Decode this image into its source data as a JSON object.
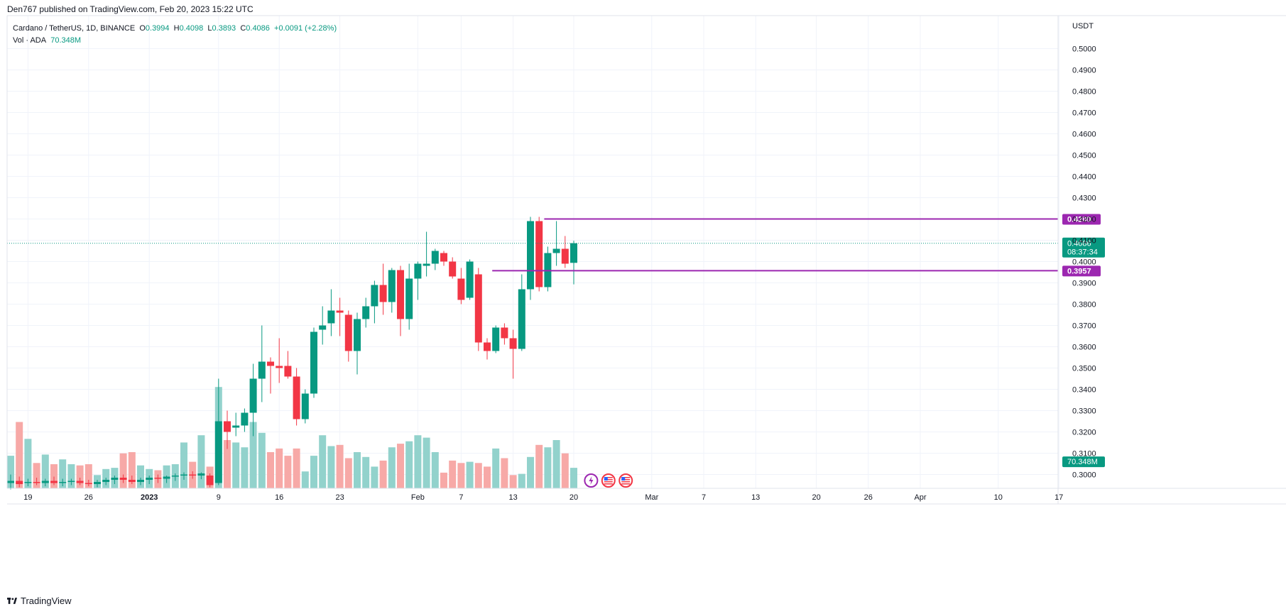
{
  "header": {
    "published": "Den767 published on TradingView.com, Feb 20, 2023 15:22 UTC"
  },
  "legend": {
    "symbol": "Cardano / TetherUS, 1D, BINANCE",
    "o_label": "O",
    "o": "0.3994",
    "h_label": "H",
    "h": "0.4098",
    "l_label": "L",
    "l": "0.3893",
    "c_label": "C",
    "c": "0.4086",
    "change": "+0.0091 (+2.28%)",
    "vol_label": "Vol · ADA",
    "vol": "70.348M"
  },
  "footer": {
    "brand": "TradingView"
  },
  "colors": {
    "up": "#089981",
    "down": "#f23645",
    "up_vol": "#92d2cc",
    "down_vol": "#f7a9a7",
    "level": "#9c27b0",
    "grid": "#f0f3fa",
    "text": "#131722"
  },
  "icons": [
    "flash-icon",
    "us-flag-icon",
    "us-flag-icon"
  ],
  "chart_data": {
    "type": "candlestick",
    "currency": "USDT",
    "y_ticks": [
      "0.3000",
      "0.3100",
      "0.3200",
      "0.3300",
      "0.3400",
      "0.3500",
      "0.3600",
      "0.3700",
      "0.3800",
      "0.3900",
      "0.4000",
      "0.4100",
      "0.4200",
      "0.4300",
      "0.4400",
      "0.4500",
      "0.4600",
      "0.4700",
      "0.4800",
      "0.4900",
      "0.5000"
    ],
    "ylim": [
      0.2935,
      0.5155
    ],
    "x_ticks": [
      {
        "label": "19",
        "i": 2
      },
      {
        "label": "26",
        "i": 9
      },
      {
        "label": "2023",
        "i": 16
      },
      {
        "label": "9",
        "i": 24
      },
      {
        "label": "16",
        "i": 31
      },
      {
        "label": "23",
        "i": 38
      },
      {
        "label": "Feb",
        "i": 47
      },
      {
        "label": "7",
        "i": 52
      },
      {
        "label": "13",
        "i": 58
      },
      {
        "label": "20",
        "i": 65
      },
      {
        "label": "Mar",
        "i": 74
      },
      {
        "label": "7",
        "i": 80
      },
      {
        "label": "13",
        "i": 86
      },
      {
        "label": "20",
        "i": 93
      },
      {
        "label": "26",
        "i": 99
      },
      {
        "label": "Apr",
        "i": 105
      },
      {
        "label": "10",
        "i": 114
      },
      {
        "label": "17",
        "i": 121
      }
    ],
    "candles": [
      {
        "date": "2022-12-17",
        "o": 0.296,
        "h": 0.3,
        "l": 0.293,
        "c": 0.297,
        "v": 0.27
      },
      {
        "date": "2022-12-18",
        "o": 0.297,
        "h": 0.299,
        "l": 0.294,
        "c": 0.2955,
        "v": 0.55
      },
      {
        "date": "2022-12-19",
        "o": 0.296,
        "h": 0.298,
        "l": 0.2945,
        "c": 0.2965,
        "v": 0.41
      },
      {
        "date": "2022-12-20",
        "o": 0.2965,
        "h": 0.2985,
        "l": 0.295,
        "c": 0.296,
        "v": 0.21
      },
      {
        "date": "2022-12-21",
        "o": 0.296,
        "h": 0.298,
        "l": 0.2945,
        "c": 0.297,
        "v": 0.28
      },
      {
        "date": "2022-12-22",
        "o": 0.297,
        "h": 0.299,
        "l": 0.295,
        "c": 0.296,
        "v": 0.2
      },
      {
        "date": "2022-12-23",
        "o": 0.296,
        "h": 0.298,
        "l": 0.2945,
        "c": 0.2965,
        "v": 0.24
      },
      {
        "date": "2022-12-24",
        "o": 0.2965,
        "h": 0.298,
        "l": 0.295,
        "c": 0.297,
        "v": 0.2
      },
      {
        "date": "2022-12-25",
        "o": 0.297,
        "h": 0.2985,
        "l": 0.295,
        "c": 0.296,
        "v": 0.19
      },
      {
        "date": "2022-12-26",
        "o": 0.296,
        "h": 0.2975,
        "l": 0.2945,
        "c": 0.2955,
        "v": 0.2
      },
      {
        "date": "2022-12-27",
        "o": 0.2955,
        "h": 0.2975,
        "l": 0.294,
        "c": 0.2965,
        "v": 0.11
      },
      {
        "date": "2022-12-28",
        "o": 0.2965,
        "h": 0.2985,
        "l": 0.295,
        "c": 0.2975,
        "v": 0.16
      },
      {
        "date": "2022-12-29",
        "o": 0.2975,
        "h": 0.2995,
        "l": 0.2955,
        "c": 0.2985,
        "v": 0.17
      },
      {
        "date": "2022-12-30",
        "o": 0.2985,
        "h": 0.3,
        "l": 0.296,
        "c": 0.2975,
        "v": 0.29
      },
      {
        "date": "2022-12-31",
        "o": 0.2975,
        "h": 0.2995,
        "l": 0.2955,
        "c": 0.2965,
        "v": 0.3
      },
      {
        "date": "2023-01-01",
        "o": 0.2965,
        "h": 0.2985,
        "l": 0.295,
        "c": 0.2975,
        "v": 0.19
      },
      {
        "date": "2023-01-02",
        "o": 0.2975,
        "h": 0.2995,
        "l": 0.2955,
        "c": 0.2985,
        "v": 0.16
      },
      {
        "date": "2023-01-03",
        "o": 0.2985,
        "h": 0.3,
        "l": 0.296,
        "c": 0.298,
        "v": 0.15
      },
      {
        "date": "2023-01-04",
        "o": 0.298,
        "h": 0.2995,
        "l": 0.296,
        "c": 0.299,
        "v": 0.19
      },
      {
        "date": "2023-01-05",
        "o": 0.299,
        "h": 0.3005,
        "l": 0.297,
        "c": 0.2995,
        "v": 0.2
      },
      {
        "date": "2023-01-06",
        "o": 0.2995,
        "h": 0.301,
        "l": 0.2975,
        "c": 0.3,
        "v": 0.38
      },
      {
        "date": "2023-01-07",
        "o": 0.3,
        "h": 0.3015,
        "l": 0.298,
        "c": 0.2995,
        "v": 0.22
      },
      {
        "date": "2023-01-08",
        "o": 0.2995,
        "h": 0.301,
        "l": 0.2978,
        "c": 0.3005,
        "v": 0.44
      },
      {
        "date": "2023-01-09",
        "o": 0.2995,
        "h": 0.3005,
        "l": 0.294,
        "c": 0.295,
        "v": 0.18
      },
      {
        "date": "2023-01-10",
        "o": 0.296,
        "h": 0.345,
        "l": 0.295,
        "c": 0.325,
        "v": 0.84
      },
      {
        "date": "2023-01-11",
        "o": 0.325,
        "h": 0.33,
        "l": 0.312,
        "c": 0.32,
        "v": 0.4
      },
      {
        "date": "2023-01-12",
        "o": 0.322,
        "h": 0.329,
        "l": 0.318,
        "c": 0.323,
        "v": 0.38
      },
      {
        "date": "2023-01-13",
        "o": 0.323,
        "h": 0.331,
        "l": 0.32,
        "c": 0.329,
        "v": 0.34
      },
      {
        "date": "2023-01-14",
        "o": 0.329,
        "h": 0.352,
        "l": 0.318,
        "c": 0.345,
        "v": 0.55
      },
      {
        "date": "2023-01-15",
        "o": 0.345,
        "h": 0.37,
        "l": 0.334,
        "c": 0.353,
        "v": 0.46
      },
      {
        "date": "2023-01-16",
        "o": 0.353,
        "h": 0.355,
        "l": 0.338,
        "c": 0.351,
        "v": 0.3
      },
      {
        "date": "2023-01-17",
        "o": 0.351,
        "h": 0.364,
        "l": 0.343,
        "c": 0.35,
        "v": 0.33
      },
      {
        "date": "2023-01-18",
        "o": 0.351,
        "h": 0.358,
        "l": 0.345,
        "c": 0.346,
        "v": 0.27
      },
      {
        "date": "2023-01-19",
        "o": 0.346,
        "h": 0.35,
        "l": 0.323,
        "c": 0.326,
        "v": 0.33
      },
      {
        "date": "2023-01-20",
        "o": 0.326,
        "h": 0.34,
        "l": 0.324,
        "c": 0.338,
        "v": 0.14
      },
      {
        "date": "2023-01-21",
        "o": 0.338,
        "h": 0.369,
        "l": 0.336,
        "c": 0.367,
        "v": 0.27
      },
      {
        "date": "2023-01-22",
        "o": 0.368,
        "h": 0.379,
        "l": 0.361,
        "c": 0.37,
        "v": 0.44
      },
      {
        "date": "2023-01-23",
        "o": 0.371,
        "h": 0.387,
        "l": 0.365,
        "c": 0.377,
        "v": 0.35
      },
      {
        "date": "2023-01-24",
        "o": 0.377,
        "h": 0.383,
        "l": 0.365,
        "c": 0.376,
        "v": 0.36
      },
      {
        "date": "2023-01-25",
        "o": 0.375,
        "h": 0.377,
        "l": 0.353,
        "c": 0.358,
        "v": 0.25
      },
      {
        "date": "2023-01-26",
        "o": 0.358,
        "h": 0.376,
        "l": 0.347,
        "c": 0.373,
        "v": 0.3
      },
      {
        "date": "2023-01-27",
        "o": 0.373,
        "h": 0.383,
        "l": 0.369,
        "c": 0.379,
        "v": 0.26
      },
      {
        "date": "2023-01-28",
        "o": 0.379,
        "h": 0.391,
        "l": 0.371,
        "c": 0.389,
        "v": 0.18
      },
      {
        "date": "2023-01-29",
        "o": 0.389,
        "h": 0.399,
        "l": 0.375,
        "c": 0.381,
        "v": 0.23
      },
      {
        "date": "2023-01-30",
        "o": 0.381,
        "h": 0.397,
        "l": 0.376,
        "c": 0.396,
        "v": 0.34
      },
      {
        "date": "2023-01-31",
        "o": 0.396,
        "h": 0.398,
        "l": 0.365,
        "c": 0.373,
        "v": 0.37
      },
      {
        "date": "2023-02-01",
        "o": 0.373,
        "h": 0.399,
        "l": 0.368,
        "c": 0.392,
        "v": 0.39
      },
      {
        "date": "2023-02-02",
        "o": 0.392,
        "h": 0.4,
        "l": 0.382,
        "c": 0.399,
        "v": 0.44
      },
      {
        "date": "2023-02-03",
        "o": 0.398,
        "h": 0.414,
        "l": 0.393,
        "c": 0.399,
        "v": 0.42
      },
      {
        "date": "2023-02-04",
        "o": 0.399,
        "h": 0.406,
        "l": 0.396,
        "c": 0.405,
        "v": 0.3
      },
      {
        "date": "2023-02-05",
        "o": 0.404,
        "h": 0.405,
        "l": 0.398,
        "c": 0.4,
        "v": 0.13
      },
      {
        "date": "2023-02-06",
        "o": 0.4,
        "h": 0.402,
        "l": 0.392,
        "c": 0.393,
        "v": 0.23
      },
      {
        "date": "2023-02-07",
        "o": 0.392,
        "h": 0.397,
        "l": 0.38,
        "c": 0.382,
        "v": 0.21
      },
      {
        "date": "2023-02-08",
        "o": 0.383,
        "h": 0.401,
        "l": 0.382,
        "c": 0.4,
        "v": 0.22
      },
      {
        "date": "2023-02-09",
        "o": 0.394,
        "h": 0.397,
        "l": 0.358,
        "c": 0.362,
        "v": 0.21
      },
      {
        "date": "2023-02-10",
        "o": 0.362,
        "h": 0.364,
        "l": 0.354,
        "c": 0.358,
        "v": 0.18
      },
      {
        "date": "2023-02-11",
        "o": 0.358,
        "h": 0.37,
        "l": 0.357,
        "c": 0.369,
        "v": 0.33
      },
      {
        "date": "2023-02-12",
        "o": 0.369,
        "h": 0.371,
        "l": 0.361,
        "c": 0.364,
        "v": 0.25
      },
      {
        "date": "2023-02-13",
        "o": 0.364,
        "h": 0.368,
        "l": 0.345,
        "c": 0.359,
        "v": 0.11
      },
      {
        "date": "2023-02-14",
        "o": 0.359,
        "h": 0.394,
        "l": 0.358,
        "c": 0.387,
        "v": 0.12
      },
      {
        "date": "2023-02-15",
        "o": 0.387,
        "h": 0.421,
        "l": 0.382,
        "c": 0.419,
        "v": 0.26
      },
      {
        "date": "2023-02-16",
        "o": 0.419,
        "h": 0.421,
        "l": 0.386,
        "c": 0.388,
        "v": 0.36
      },
      {
        "date": "2023-02-17",
        "o": 0.388,
        "h": 0.407,
        "l": 0.386,
        "c": 0.404,
        "v": 0.34
      },
      {
        "date": "2023-02-18",
        "o": 0.404,
        "h": 0.419,
        "l": 0.398,
        "c": 0.406,
        "v": 0.4
      },
      {
        "date": "2023-02-19",
        "o": 0.406,
        "h": 0.412,
        "l": 0.397,
        "c": 0.399,
        "v": 0.29
      },
      {
        "date": "2023-02-20",
        "o": 0.3994,
        "h": 0.4098,
        "l": 0.3893,
        "c": 0.4086,
        "v": 0.17
      }
    ],
    "vol_scale": "relative 0–1",
    "levels": [
      {
        "price": 0.42,
        "label": "0.4200",
        "from_i": 62
      },
      {
        "price": 0.3957,
        "label": "0.3957",
        "from_i": 56
      }
    ],
    "last_price": {
      "price": 0.4086,
      "label": "0.4086",
      "countdown": "08:37:34"
    },
    "volume_label": "70.348M"
  }
}
